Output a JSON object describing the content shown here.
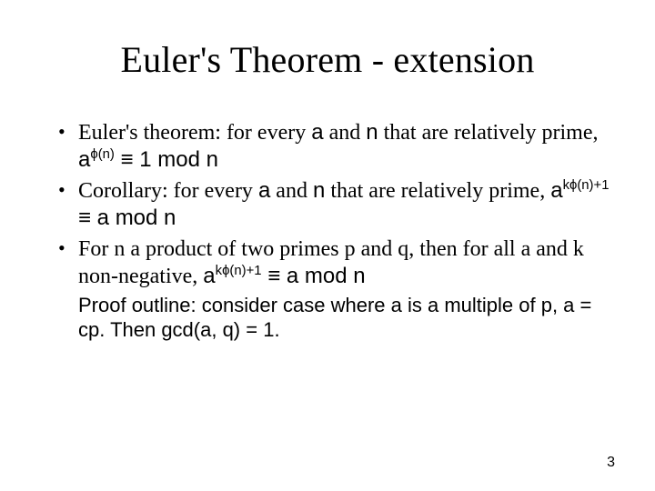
{
  "title": "Euler's Theorem - extension",
  "bullets": [
    {
      "pre1": "Euler's theorem: for every ",
      "a1": "a",
      "mid1": " and ",
      "n1": "n",
      "post1": " that are relatively prime,  ",
      "base1": "a",
      "exp1": "ϕ(n)",
      "tail1": " ≡ 1 mod n"
    },
    {
      "pre2": "Corollary: for every ",
      "a2": "a",
      "mid2": " and ",
      "n2": "n",
      "post2": " that are relatively prime, ",
      "base2": "a",
      "exp2": "kϕ(n)+1",
      "tail2": " ≡ a mod n"
    },
    {
      "pre3": "For n a product of two primes p and q, then for all a and k non-negative, ",
      "base3": "a",
      "exp3": "kϕ(n)+1",
      "tail3": " ≡ a mod n"
    }
  ],
  "proof": "Proof outline: consider case where a is a multiple of p, a = cp. Then gcd(a, q) = 1.",
  "page_number": "3",
  "colors": {
    "text": "#000000",
    "background": "#ffffff"
  },
  "fonts": {
    "serif": "Times New Roman",
    "sans": "Arial"
  }
}
